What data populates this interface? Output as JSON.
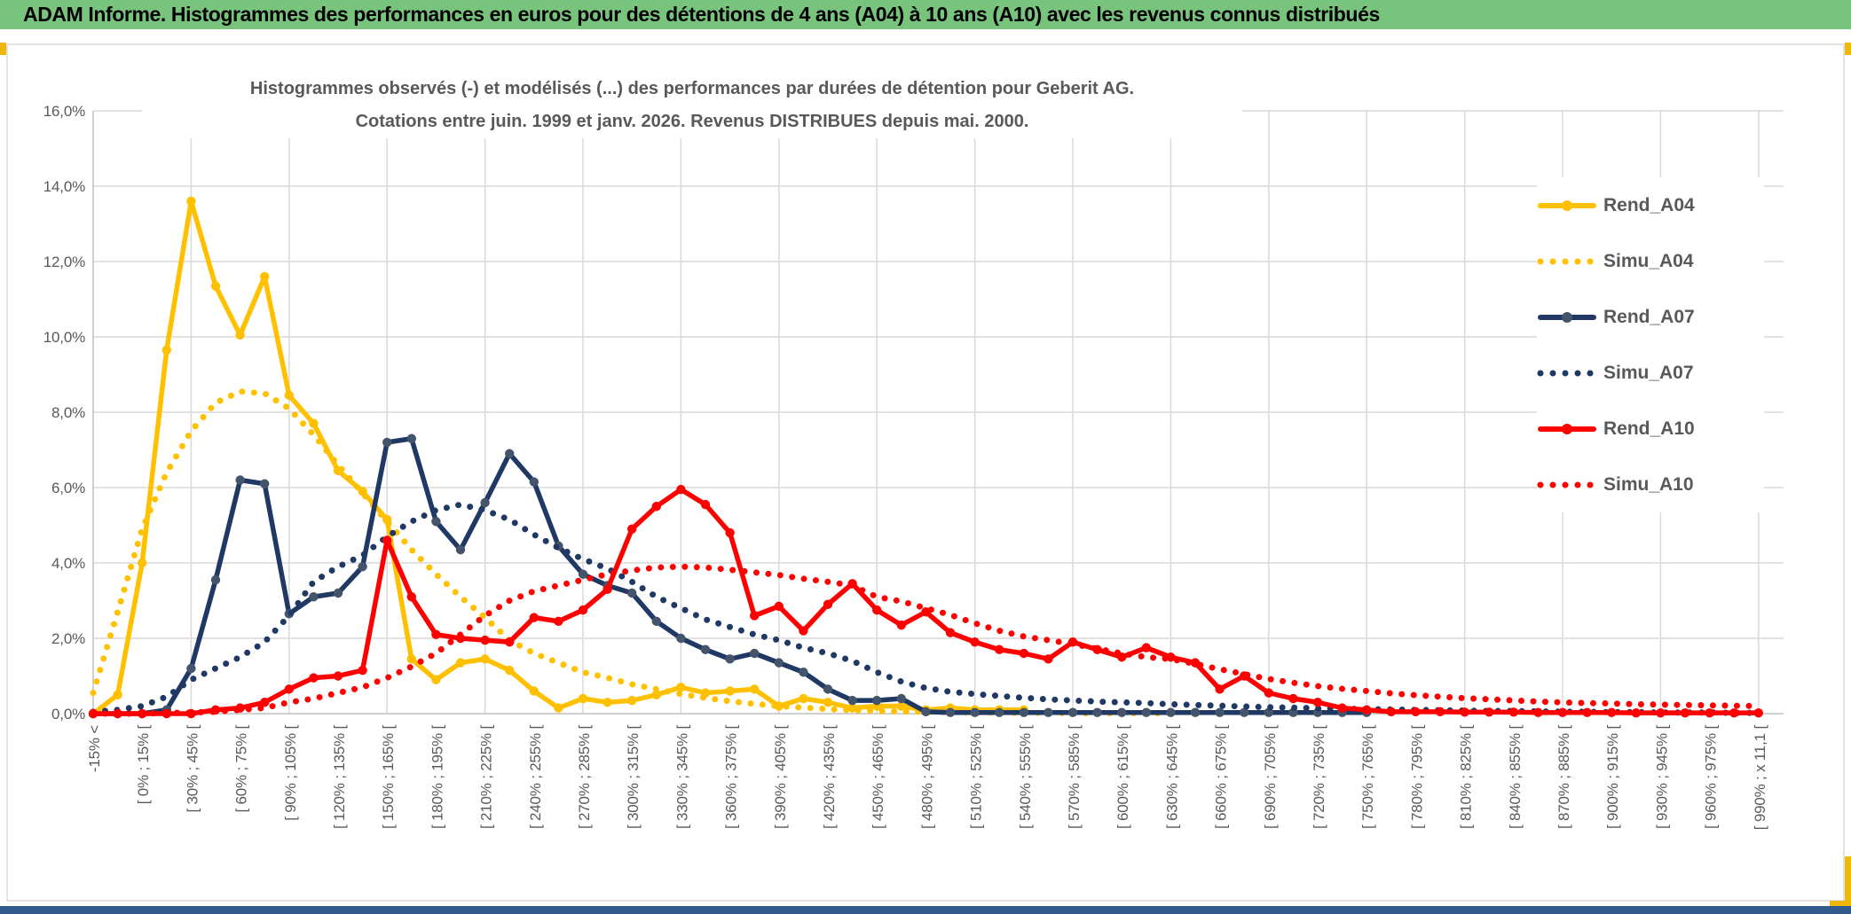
{
  "header": {
    "title": "ADAM Informe. Histogrammes des performances en euros pour des détentions de 4 ans (A04) à 10 ans (A10) avec les revenus connus distribués"
  },
  "colors": {
    "title_bar_green": "#79C47C",
    "accent_yellow": "#EFB70A",
    "bottom_bar_blue": "#325A8C",
    "gold": "#FFC000",
    "navy": "#1F3864",
    "navy_marker": "#44546A",
    "red": "#FF0000",
    "gridline": "#D9D9D9",
    "axis": "#BFBFBF",
    "text_gray": "#595959"
  },
  "chart_data": {
    "type": "line",
    "title_line1": "Histogrammes observés (-) et modélisés (...) des performances par durées de détention pour Geberit AG.",
    "title_line2": "Cotations entre juin. 1999 et janv. 2026. Revenus DISTRIBUES depuis mai. 2000.",
    "xlabel": "",
    "ylabel": "",
    "ylim": [
      0,
      16
    ],
    "ytick_step_percent": 2,
    "grid": true,
    "legend_position": "right",
    "n_points": 69,
    "bin_width_percent": 15,
    "ytick_labels": [
      "0,0%",
      "2,0%",
      "4,0%",
      "6,0%",
      "8,0%",
      "10,0%",
      "12,0%",
      "14,0%",
      "16,0%"
    ],
    "x_labels": [
      "-15% <",
      "[ 0% ; 15% [",
      "[ 30% ; 45% [",
      "[ 60% ; 75% [",
      "[ 90% ; 105% [",
      "[ 120% ; 135% [",
      "[ 150% ; 165% [",
      "[ 180% ; 195% [",
      "[ 210% ; 225% [",
      "[ 240% ; 255% [",
      "[ 270% ; 285% [",
      "[ 300% ; 315% [",
      "[ 330% ; 345% [",
      "[ 360% ; 375% [",
      "[ 390% ; 405% [",
      "[ 420% ; 435% [",
      "[ 450% ; 465% [",
      "[ 480% ; 495% [",
      "[ 510% ; 525% [",
      "[ 540% ; 555% [",
      "[ 570% ; 585% [",
      "[ 600% ; 615% [",
      "[ 630% ; 645% [",
      "[ 660% ; 675% [",
      "[ 690% ; 705% [",
      "[ 720% ; 735% [",
      "[ 750% ; 765% [",
      "[ 780% ; 795% [",
      "[ 810% ; 825% [",
      "[ 840% ; 855% [",
      "[ 870% ; 885% [",
      "[ 900% ; 915% [",
      "[ 930% ; 945% [",
      "[ 960% ; 975% [",
      "[ 990% ; x 11,1 ["
    ],
    "series": [
      {
        "name": "Rend_A04",
        "color": "#FFC000",
        "style": "solid",
        "marker": "circle",
        "marker_color": "#FFC000",
        "values": [
          0,
          0.5,
          4,
          9.65,
          13.6,
          11.35,
          10.05,
          11.6,
          8.45,
          7.7,
          6.45,
          5.9,
          5.15,
          1.45,
          0.9,
          1.35,
          1.45,
          1.15,
          0.6,
          0.15,
          0.4,
          0.3,
          0.35,
          0.5,
          0.7,
          0.55,
          0.6,
          0.65,
          0.2,
          0.4,
          0.3,
          0.15,
          0.2,
          0.2,
          0.1,
          0.15,
          0.1,
          0.1,
          0.1,
          null,
          null,
          null,
          null,
          null,
          null,
          null,
          null,
          null,
          null,
          null,
          null,
          null,
          null,
          null,
          null,
          null,
          null,
          null,
          null,
          null,
          null,
          null,
          null,
          null,
          null,
          null,
          null,
          null,
          null
        ]
      },
      {
        "name": "Simu_A04",
        "color": "#FFC000",
        "style": "dotted",
        "marker": null,
        "values": [
          0.55,
          2.7,
          4.9,
          6.4,
          7.5,
          8.25,
          8.55,
          8.5,
          8.1,
          7.4,
          6.6,
          5.85,
          5.1,
          4.35,
          3.7,
          3.1,
          2.55,
          1.95,
          1.6,
          1.35,
          1.1,
          0.95,
          0.78,
          0.65,
          0.52,
          0.42,
          0.33,
          0.26,
          0.2,
          0.16,
          0.12,
          0.09,
          0.07,
          0.06,
          0.05,
          0.04,
          0.03,
          0.03,
          0.02,
          0.02,
          0.01,
          0.01,
          0.01,
          0.01,
          0.01,
          null,
          null,
          null,
          null,
          null,
          null,
          null,
          null,
          null,
          null,
          null,
          null,
          null,
          null,
          null,
          null,
          null,
          null,
          null,
          null,
          null,
          null,
          null,
          null
        ]
      },
      {
        "name": "Rend_A07",
        "color": "#1F3864",
        "style": "solid",
        "marker": "circle",
        "marker_color": "#44546A",
        "values": [
          0,
          0,
          0,
          0.1,
          1.2,
          3.55,
          6.2,
          6.1,
          2.65,
          3.1,
          3.2,
          3.9,
          7.2,
          7.3,
          5.1,
          4.35,
          5.6,
          6.9,
          6.15,
          4.45,
          3.7,
          3.4,
          3.2,
          2.45,
          2,
          1.7,
          1.45,
          1.6,
          1.35,
          1.1,
          0.65,
          0.35,
          0.35,
          0.4,
          0.05,
          0.03,
          0.03,
          0.03,
          0.03,
          0.03,
          0.03,
          0.03,
          0.03,
          0.03,
          0.03,
          0.03,
          0.03,
          0.03,
          0.03,
          0.03,
          0.03,
          0.03,
          0.03,
          null,
          null,
          null,
          null,
          null,
          null,
          null,
          null,
          null,
          null,
          null,
          null,
          null,
          null,
          null,
          null
        ]
      },
      {
        "name": "Simu_A07",
        "color": "#1F3864",
        "style": "dotted",
        "marker": null,
        "values": [
          0.05,
          0.1,
          0.2,
          0.45,
          0.9,
          1.2,
          1.5,
          1.9,
          2.6,
          3.5,
          3.9,
          4.2,
          4.7,
          5.1,
          5.4,
          5.55,
          5.4,
          5.15,
          4.75,
          4.4,
          4.1,
          3.85,
          3.5,
          3.1,
          2.8,
          2.5,
          2.3,
          2.1,
          1.95,
          1.75,
          1.6,
          1.4,
          1.1,
          0.85,
          0.68,
          0.58,
          0.52,
          0.47,
          0.42,
          0.38,
          0.35,
          0.32,
          0.3,
          0.28,
          0.25,
          0.23,
          0.21,
          0.19,
          0.17,
          0.16,
          0.14,
          0.13,
          0.12,
          0.11,
          0.1,
          0.09,
          0.08,
          0.07,
          0.07,
          0.06,
          0.05,
          0.05,
          0.04,
          0.04,
          0.03,
          0.03,
          0.03,
          0.02,
          0.02
        ]
      },
      {
        "name": "Rend_A10",
        "color": "#FF0000",
        "style": "solid",
        "marker": "circle",
        "marker_color": "#FF0000",
        "values": [
          0,
          0,
          0,
          0,
          0,
          0.1,
          0.15,
          0.3,
          0.65,
          0.95,
          1,
          1.15,
          4.6,
          3.1,
          2.1,
          2,
          1.95,
          1.9,
          2.55,
          2.45,
          2.75,
          3.3,
          4.9,
          5.5,
          5.95,
          5.55,
          4.8,
          2.6,
          2.85,
          2.2,
          2.9,
          3.45,
          2.75,
          2.35,
          2.7,
          2.15,
          1.9,
          1.7,
          1.6,
          1.45,
          1.9,
          1.7,
          1.5,
          1.75,
          1.5,
          1.35,
          0.65,
          1,
          0.55,
          0.4,
          0.3,
          0.15,
          0.1,
          0.05,
          0.05,
          0.05,
          0.04,
          0.04,
          0.04,
          0.03,
          0.03,
          0.03,
          0.03,
          0.02,
          0.02,
          0.02,
          0.02,
          0.02,
          0.02
        ]
      },
      {
        "name": "Simu_A10",
        "color": "#FF0000",
        "style": "dotted",
        "marker": null,
        "values": [
          0,
          0,
          0,
          0.02,
          0.03,
          0.05,
          0.1,
          0.15,
          0.3,
          0.4,
          0.55,
          0.7,
          0.95,
          1.25,
          1.6,
          2.1,
          2.6,
          3,
          3.25,
          3.4,
          3.55,
          3.7,
          3.8,
          3.88,
          3.9,
          3.88,
          3.82,
          3.75,
          3.68,
          3.58,
          3.5,
          3.4,
          3.1,
          2.98,
          2.8,
          2.62,
          2.4,
          2.2,
          2.05,
          1.95,
          1.85,
          1.72,
          1.6,
          1.5,
          1.45,
          1.32,
          1.18,
          1.05,
          0.92,
          0.82,
          0.73,
          0.66,
          0.6,
          0.54,
          0.49,
          0.45,
          0.41,
          0.38,
          0.35,
          0.32,
          0.3,
          0.28,
          0.27,
          0.25,
          0.24,
          0.23,
          0.22,
          0.21,
          0.2
        ]
      }
    ]
  }
}
